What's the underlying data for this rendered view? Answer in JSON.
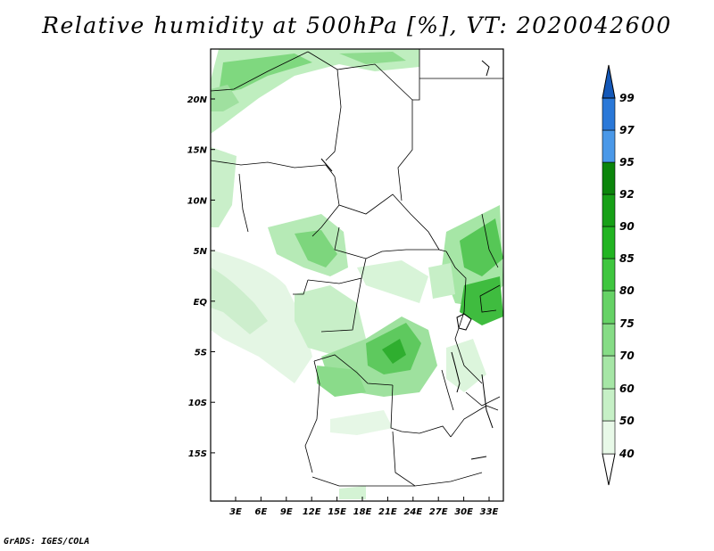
{
  "title": "Relative humidity at 500hPa [%], VT: 2020042600",
  "footer": "GrADS: IGES/COLA",
  "lat_labels": [
    "20N",
    "15N",
    "10N",
    "5N",
    "EQ",
    "5S",
    "10S",
    "15S"
  ],
  "lon_labels": [
    "3E",
    "6E",
    "9E",
    "12E",
    "15E",
    "18E",
    "21E",
    "24E",
    "27E",
    "30E",
    "33E"
  ],
  "colorbar": {
    "labels": [
      "40",
      "50",
      "60",
      "70",
      "75",
      "80",
      "85",
      "90",
      "92",
      "95",
      "97",
      "99"
    ],
    "colors": [
      "#ffffff",
      "#e8f9e8",
      "#c6f0c6",
      "#a6e6a6",
      "#86dc86",
      "#66d266",
      "#3fc63f",
      "#22b422",
      "#17a017",
      "#0b850b",
      "#4a98e8",
      "#2a78d8",
      "#1458b8"
    ]
  },
  "map_colors": {
    "ocean_shading": "#dff3df",
    "humid_light": "#b8ebb8",
    "humid_mid": "#6fd06f",
    "humid_dark": "#2fae2f"
  }
}
